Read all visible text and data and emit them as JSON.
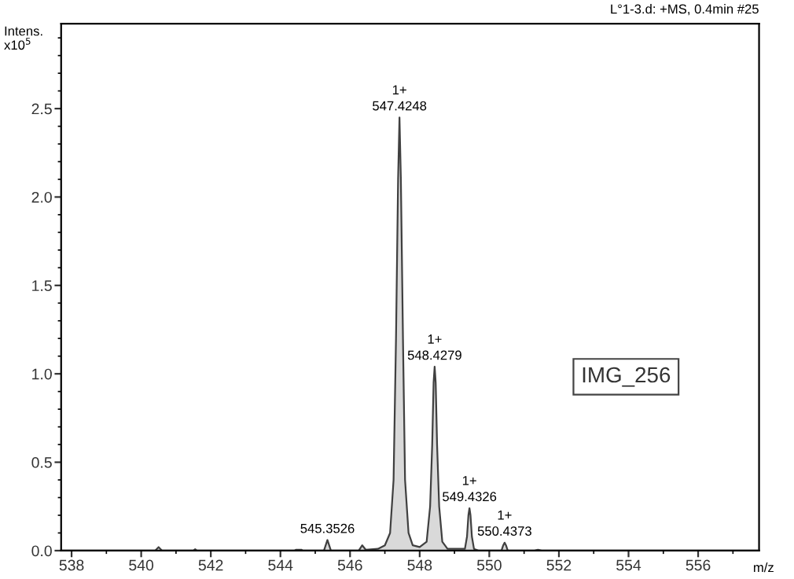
{
  "chart_data": {
    "type": "area",
    "title": "L°1-3.d: +MS, 0.4min #25",
    "xlabel": "m/z",
    "ylabel": "Intens.\nx10$^{5}$",
    "x": [
      537.7,
      540.4,
      540.5,
      540.6,
      541.5,
      541.55,
      541.6,
      544.4,
      544.45,
      544.6,
      544.65,
      545.25,
      545.35,
      545.45,
      546.25,
      546.35,
      546.45,
      546.8,
      547.0,
      547.15,
      547.25,
      547.32,
      547.38,
      547.42,
      547.46,
      547.52,
      547.58,
      547.68,
      547.8,
      548.0,
      548.2,
      548.3,
      548.36,
      548.4,
      548.43,
      548.46,
      548.5,
      548.56,
      548.65,
      548.8,
      549.3,
      549.36,
      549.4,
      549.43,
      549.46,
      549.5,
      549.56,
      549.7,
      550.35,
      550.4,
      550.44,
      550.48,
      550.53,
      551.3,
      551.4,
      551.5,
      557.7
    ],
    "series": [
      {
        "color": "#404040",
        "values": [
          0,
          0,
          0.02,
          0,
          0,
          0.008,
          0,
          0,
          0.005,
          0.005,
          0,
          0,
          0.06,
          0,
          0,
          0.03,
          0.005,
          0.01,
          0.03,
          0.1,
          0.4,
          1.2,
          2.1,
          2.45,
          2.1,
          1.2,
          0.4,
          0.1,
          0.03,
          0.02,
          0.05,
          0.25,
          0.6,
          0.95,
          1.04,
          0.95,
          0.6,
          0.25,
          0.05,
          0.01,
          0.01,
          0.08,
          0.2,
          0.24,
          0.2,
          0.08,
          0.01,
          0,
          0,
          0.03,
          0.045,
          0.03,
          0,
          0,
          0.005,
          0,
          0
        ]
      }
    ],
    "xlim": [
      537.7,
      557.75
    ],
    "ylim": [
      0,
      2.98
    ],
    "xticks": [
      538,
      540,
      542,
      544,
      546,
      548,
      550,
      552,
      554,
      556
    ],
    "yticks": [
      {
        "value": 0,
        "label": "0.0"
      },
      {
        "value": 0.5,
        "label": "0.5"
      },
      {
        "value": 1,
        "label": "1.0"
      },
      {
        "value": 1.5,
        "label": "1.5"
      },
      {
        "value": 2,
        "label": "2.0"
      },
      {
        "value": 2.5,
        "label": "2.5"
      }
    ],
    "annotations": [
      {
        "text": "1+\n547.4248",
        "x": 547.42,
        "y": 2.45
      },
      {
        "text": "1+\n548.4279",
        "x": 548.43,
        "y": 1.04
      },
      {
        "text": "1+\n549.4326",
        "x": 549.43,
        "y": 0.24
      },
      {
        "text": "1+\n550.4373",
        "x": 550.44,
        "y": 0.045
      },
      {
        "text": "545.3526",
        "x": 545.35,
        "y": 0.06
      },
      "IMG_256"
    ],
    "grid": false,
    "legend": false
  }
}
